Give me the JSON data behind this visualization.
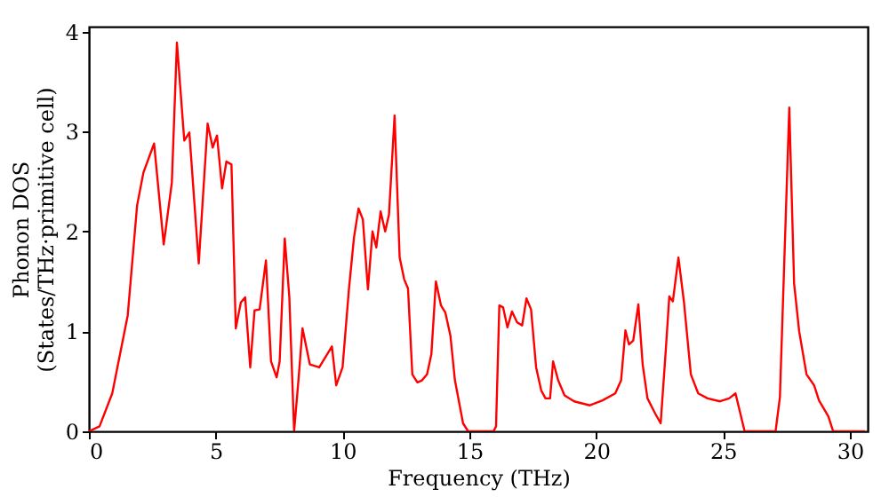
{
  "chart_data": {
    "type": "line",
    "xlabel": "Frequency (THz)",
    "ylabel": "Phonon DOS\n(States/THz·primitive cell)",
    "xlim": [
      0,
      30.7
    ],
    "ylim": [
      0,
      4.05
    ],
    "xticks": [
      0,
      5,
      10,
      15,
      20,
      25,
      30
    ],
    "yticks": [
      0,
      1,
      2,
      3,
      4
    ],
    "grid": false,
    "line_style": "solid",
    "marker": "none",
    "series": [
      {
        "color": "#ff0000",
        "x": [
          0,
          0.42,
          0.92,
          1.53,
          1.9,
          2.15,
          2.57,
          2.95,
          3.27,
          3.47,
          3.76,
          3.96,
          4.33,
          4.68,
          4.88,
          5.05,
          5.25,
          5.42,
          5.62,
          5.79,
          5.99,
          6.16,
          6.36,
          6.53,
          6.73,
          6.98,
          7.18,
          7.4,
          7.52,
          7.72,
          7.9,
          8.09,
          8.27,
          8.42,
          8.71,
          9.08,
          9.58,
          9.75,
          10.0,
          10.25,
          10.45,
          10.63,
          10.8,
          11.0,
          11.18,
          11.33,
          11.5,
          11.68,
          11.83,
          12.05,
          12.25,
          12.43,
          12.58,
          12.75,
          12.95,
          13.13,
          13.33,
          13.5,
          13.68,
          13.88,
          14.05,
          14.25,
          14.43,
          14.75,
          14.95,
          15.95,
          16.05,
          16.18,
          16.33,
          16.5,
          16.68,
          16.88,
          17.08,
          17.25,
          17.43,
          17.63,
          17.83,
          18.0,
          18.18,
          18.3,
          18.5,
          18.75,
          19.13,
          19.75,
          20.25,
          20.75,
          20.98,
          21.15,
          21.29,
          21.46,
          21.66,
          21.83,
          22.02,
          22.32,
          22.54,
          22.73,
          22.88,
          23.02,
          23.24,
          23.46,
          23.73,
          24.02,
          24.39,
          24.88,
          25.24,
          25.49,
          25.85,
          27.07,
          27.24,
          27.61,
          27.8,
          28.0,
          28.29,
          28.59,
          28.78,
          29.15,
          29.34,
          30.6
        ],
        "values": [
          0,
          0.05,
          0.38,
          1.16,
          2.26,
          2.59,
          2.88,
          1.87,
          2.49,
          3.89,
          2.91,
          2.99,
          1.68,
          3.08,
          2.84,
          2.96,
          2.43,
          2.7,
          2.67,
          1.03,
          1.29,
          1.34,
          0.64,
          1.21,
          1.22,
          1.71,
          0.7,
          0.54,
          0.7,
          1.93,
          1.35,
          0,
          0.54,
          1.03,
          0.67,
          0.64,
          0.85,
          0.46,
          0.64,
          1.42,
          1.94,
          2.23,
          2.12,
          1.42,
          2.0,
          1.84,
          2.2,
          2.0,
          2.17,
          3.16,
          1.74,
          1.52,
          1.43,
          0.57,
          0.49,
          0.51,
          0.57,
          0.77,
          1.5,
          1.26,
          1.19,
          0.96,
          0.51,
          0.08,
          0,
          0,
          0.05,
          1.26,
          1.24,
          1.04,
          1.2,
          1.09,
          1.06,
          1.33,
          1.22,
          0.64,
          0.41,
          0.33,
          0.33,
          0.7,
          0.51,
          0.36,
          0.3,
          0.26,
          0.31,
          0.38,
          0.51,
          1.01,
          0.87,
          0.91,
          1.27,
          0.67,
          0.33,
          0.18,
          0.08,
          0.77,
          1.35,
          1.3,
          1.74,
          1.29,
          0.57,
          0.38,
          0.33,
          0.3,
          0.33,
          0.38,
          0,
          0,
          0.34,
          3.24,
          1.48,
          1.0,
          0.57,
          0.46,
          0.31,
          0.15,
          0,
          0
        ]
      }
    ]
  }
}
